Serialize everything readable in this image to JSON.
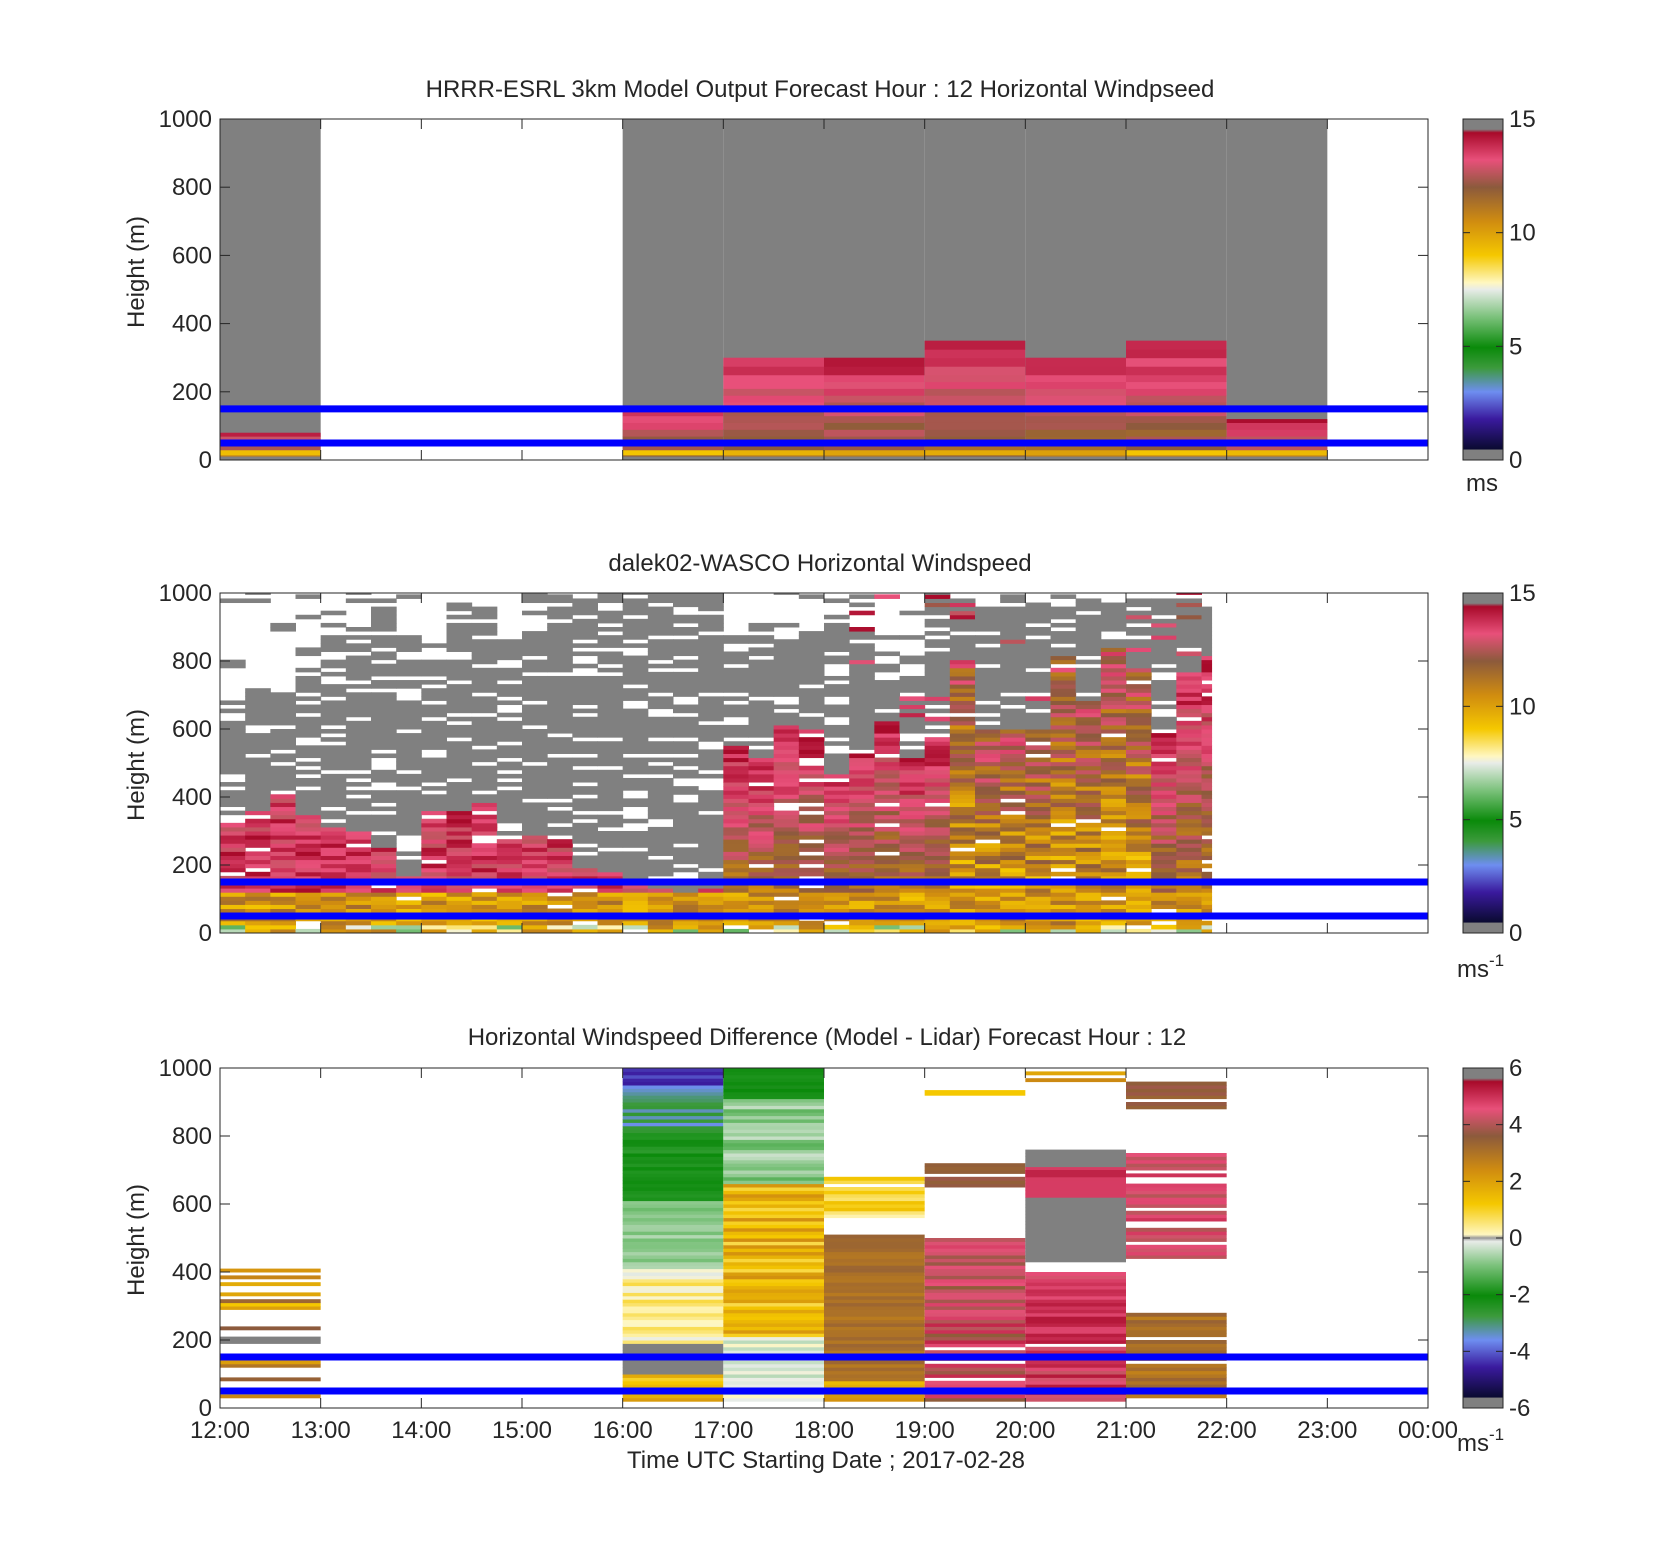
{
  "chart_data": [
    {
      "type": "heatmap",
      "title": "HRRR-ESRL 3km Model Output   Forecast Hour : 12 Horizontal Windpseed",
      "ylabel": "Height (m)",
      "ylim": [
        0,
        1000
      ],
      "yticks": [
        "0",
        "200",
        "400",
        "600",
        "800",
        "1000"
      ],
      "xticks_shown": false,
      "colorbar": {
        "ticks": [
          "0",
          "5",
          "10",
          "15"
        ],
        "range": [
          0,
          15
        ],
        "unit": "ms"
      },
      "reference_lines_m": [
        50,
        150
      ],
      "columns": [
        {
          "hour": 0,
          "top_m": 80,
          "status": "data"
        },
        {
          "hour": 1,
          "top_m": null,
          "status": "missing"
        },
        {
          "hour": 2,
          "top_m": null,
          "status": "missing"
        },
        {
          "hour": 3,
          "top_m": null,
          "status": "missing"
        },
        {
          "hour": 4,
          "top_m": 150,
          "status": "data"
        },
        {
          "hour": 5,
          "top_m": 300,
          "status": "data"
        },
        {
          "hour": 6,
          "top_m": 300,
          "status": "data"
        },
        {
          "hour": 7,
          "top_m": 350,
          "status": "data"
        },
        {
          "hour": 8,
          "top_m": 300,
          "status": "data"
        },
        {
          "hour": 9,
          "top_m": 350,
          "status": "data"
        },
        {
          "hour": 10,
          "top_m": 120,
          "status": "data"
        },
        {
          "hour": 11,
          "top_m": null,
          "status": "missing"
        }
      ]
    },
    {
      "type": "heatmap",
      "title": "dalek02-WASCO  Horizontal Windspeed",
      "ylabel": "Height (m)",
      "ylim": [
        0,
        1000
      ],
      "yticks": [
        "0",
        "200",
        "400",
        "600",
        "800",
        "1000"
      ],
      "xticks_shown": false,
      "colorbar": {
        "ticks": [
          "0",
          "5",
          "10",
          "15"
        ],
        "range": [
          0,
          15
        ],
        "unit": "ms",
        "unit_exp": "-1"
      },
      "reference_lines_m": [
        50,
        150
      ],
      "data_extent_hours": [
        0,
        9.85
      ]
    },
    {
      "type": "heatmap",
      "title": "Horizontal Windspeed Difference (Model - Lidar) Forecast Hour : 12",
      "ylabel": "Height (m)",
      "xlabel": "Time UTC  Starting Date ; 2017-02-28",
      "ylim": [
        0,
        1000
      ],
      "yticks": [
        "0",
        "200",
        "400",
        "600",
        "800",
        "1000"
      ],
      "xticks": [
        "12:00",
        "13:00",
        "14:00",
        "15:00",
        "16:00",
        "17:00",
        "18:00",
        "19:00",
        "20:00",
        "21:00",
        "22:00",
        "23:00",
        "00:00"
      ],
      "colorbar": {
        "ticks": [
          "-6",
          "-4",
          "-2",
          "0",
          "2",
          "4",
          "6"
        ],
        "range": [
          -6,
          6
        ],
        "unit": "ms",
        "unit_exp": "-1"
      },
      "reference_lines_m": [
        50,
        150
      ]
    }
  ]
}
